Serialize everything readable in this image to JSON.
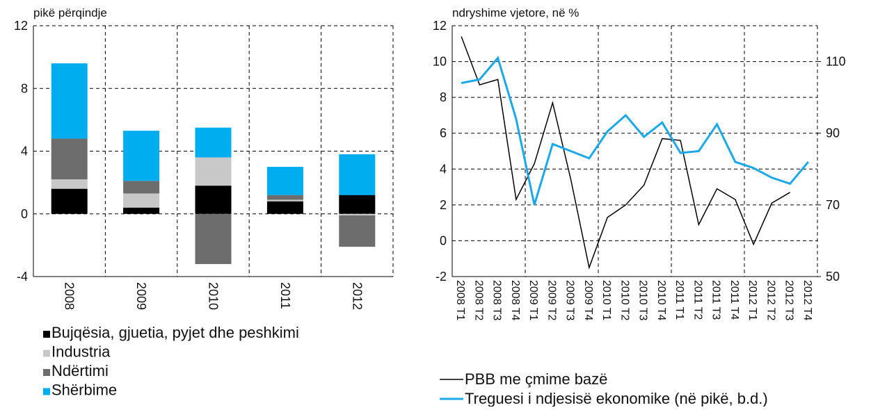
{
  "chart_data": [
    {
      "type": "bar",
      "stacked": true,
      "ylabel": "pikë përqindje",
      "categories": [
        "2008",
        "2009",
        "2010",
        "2011",
        "2012"
      ],
      "series": [
        {
          "name": "Bujqësia, gjuetia, pyjet dhe peshkimi",
          "color": "#000000",
          "values": [
            1.6,
            0.4,
            1.8,
            0.8,
            1.2
          ]
        },
        {
          "name": "Industria",
          "color": "#c8c8c8",
          "values": [
            0.6,
            0.9,
            1.8,
            0.1,
            -0.1
          ]
        },
        {
          "name": "Ndërtimi",
          "color": "#6d6d6d",
          "values": [
            2.6,
            0.8,
            -3.2,
            0.3,
            -2.0
          ]
        },
        {
          "name": "Shërbime",
          "color": "#00adef",
          "values": [
            4.8,
            3.2,
            1.9,
            1.8,
            2.6
          ]
        }
      ],
      "ylim": [
        -4,
        12
      ],
      "yticks": [
        -4,
        0,
        4,
        8,
        12
      ],
      "grid": true
    },
    {
      "type": "line",
      "ylabel": "ndryshime vjetore, në %",
      "categories": [
        "2008 T1",
        "2008 T2",
        "2008 T3",
        "2008 T4",
        "2009 T1",
        "2009 T2",
        "2009 T3",
        "2009 T4",
        "2010 T1",
        "2010 T2",
        "2010 T3",
        "2010 T4",
        "2011 T1",
        "2011 T2",
        "2011 T3",
        "2011 T4",
        "2012 T1",
        "2012 T2",
        "2012 T3",
        "2012 T4"
      ],
      "series": [
        {
          "name": "PBB me çmime bazë",
          "color": "#000000",
          "values": [
            11.4,
            8.7,
            9.0,
            2.3,
            4.3,
            7.7,
            3.4,
            -1.5,
            1.3,
            2.0,
            3.1,
            5.7,
            5.6,
            0.9,
            2.9,
            2.3,
            -0.2,
            2.1,
            2.7,
            null
          ]
        },
        {
          "name": "Treguesi i ndjesisë ekonomike (në pikë, b.d.)",
          "color": "#1ba8e8",
          "axis": "y2",
          "values": [
            104,
            105,
            111,
            94,
            70,
            87,
            85,
            83,
            90.5,
            95,
            89,
            93,
            84.5,
            85,
            92.5,
            82,
            80.3,
            77.6,
            75.9,
            82
          ]
        }
      ],
      "ylim": [
        -2,
        12
      ],
      "yticks": [
        -2,
        0,
        2,
        4,
        6,
        8,
        10,
        12
      ],
      "y2lim": [
        50,
        120
      ],
      "y2ticks": [
        50,
        70,
        90,
        110
      ],
      "grid": true
    }
  ]
}
